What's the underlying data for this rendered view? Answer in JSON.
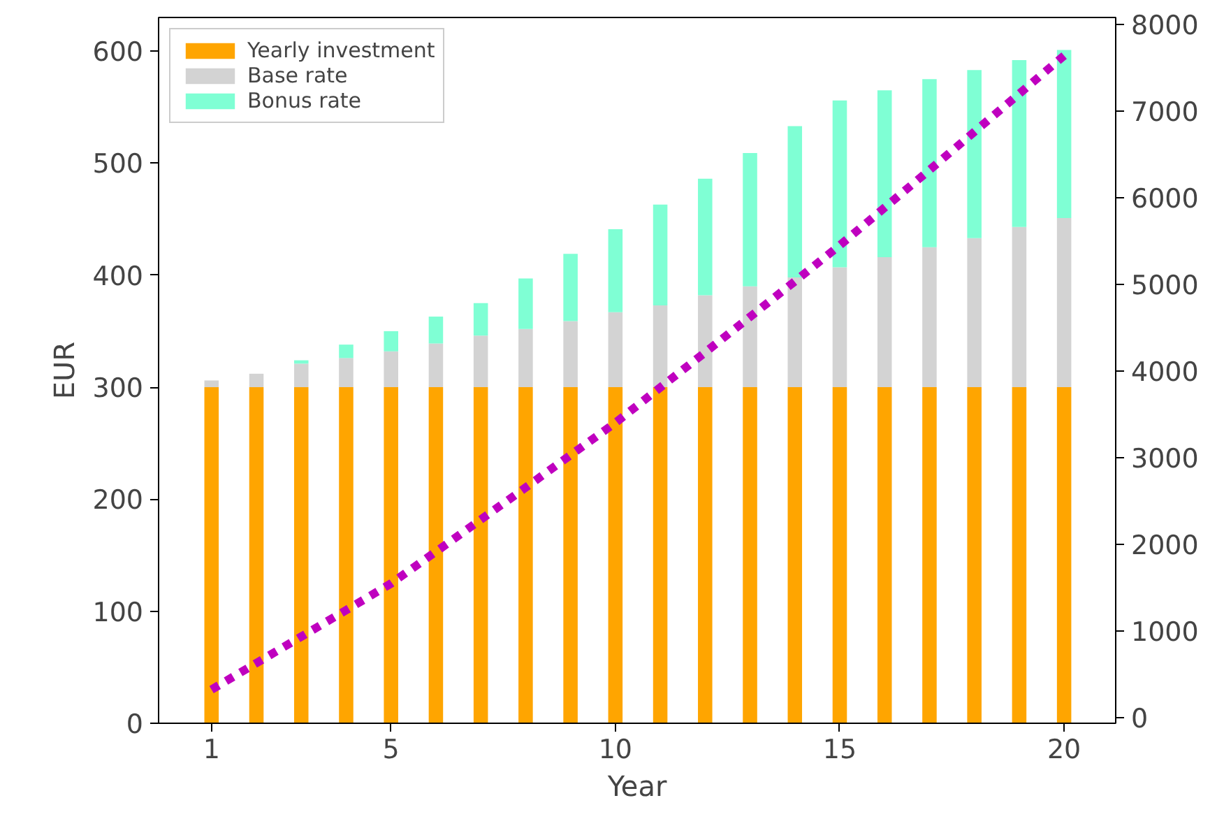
{
  "chart_data": {
    "type": "bar",
    "stacked": true,
    "xlabel": "Year",
    "ylabel": "EUR",
    "x": [
      1,
      2,
      3,
      4,
      5,
      6,
      7,
      8,
      9,
      10,
      11,
      12,
      13,
      14,
      15,
      16,
      17,
      18,
      19,
      20
    ],
    "series": [
      {
        "name": "Yearly investment",
        "color": "#ffa500",
        "values": [
          300,
          300,
          300,
          300,
          300,
          300,
          300,
          300,
          300,
          300,
          300,
          300,
          300,
          300,
          300,
          300,
          300,
          300,
          300,
          300
        ]
      },
      {
        "name": "Base rate",
        "color": "#d3d3d3",
        "values": [
          6,
          12,
          21,
          26,
          32,
          39,
          46,
          52,
          59,
          67,
          73,
          82,
          90,
          98,
          107,
          116,
          125,
          133,
          143,
          151
        ]
      },
      {
        "name": "Bonus rate",
        "color": "#7fffd4",
        "values": [
          0,
          0,
          3,
          12,
          18,
          24,
          29,
          45,
          60,
          74,
          90,
          104,
          119,
          135,
          149,
          149,
          150,
          150,
          149,
          150
        ]
      },
      {
        "type": "line",
        "axis": "y2",
        "color": "#bf00bf",
        "line_style": "dashed",
        "marker": "none",
        "values": [
          323,
          630,
          935,
          1240,
          1548,
          1915,
          2285,
          2655,
          3030,
          3403,
          3810,
          4215,
          4625,
          5035,
          5450,
          5885,
          6320,
          6760,
          7200,
          7640
        ]
      }
    ],
    "xlim": [
      -0.18,
      21.15
    ],
    "xticks": [
      1,
      5,
      10,
      15,
      20
    ],
    "ylim": [
      0,
      630
    ],
    "yticks": [
      0,
      100,
      200,
      300,
      400,
      500,
      600
    ],
    "y2lim": [
      -65,
      8080
    ],
    "y2ticks": [
      0,
      1000,
      2000,
      3000,
      4000,
      5000,
      6000,
      7000,
      8000
    ],
    "grid": false,
    "legend": "top left"
  }
}
